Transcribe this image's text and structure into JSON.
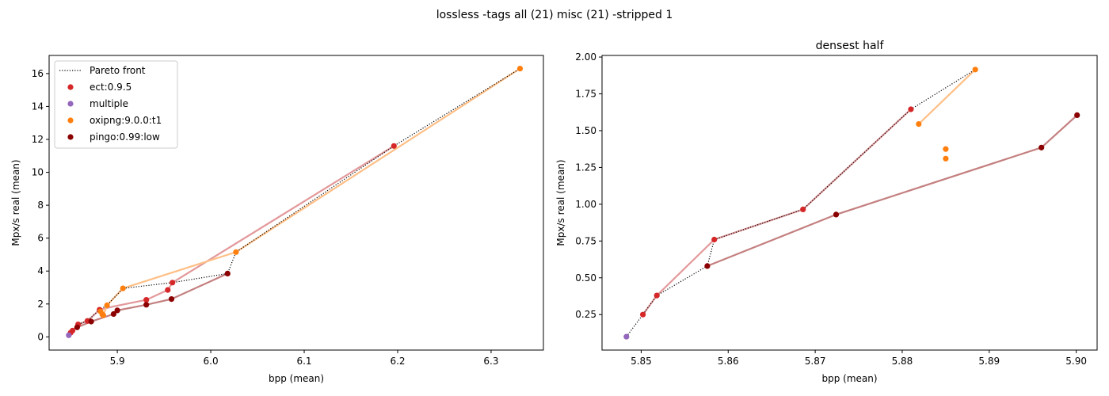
{
  "suptitle": "lossless -tags all (21) misc (21) -stripped 1",
  "colors": {
    "ect": "#d62728",
    "multiple": "#9467bd",
    "oxipng": "#ff7f0e",
    "pingo": "#8b0000",
    "ect_line": "#e3989a",
    "oxipng_line": "#ffbf86",
    "pingo_line": "#c47f7f",
    "pareto": "#000000"
  },
  "chart_data": [
    {
      "type": "scatter",
      "title": "",
      "xlabel": "bpp (mean)",
      "ylabel": "Mpx/s real (mean)",
      "xlim": [
        5.827,
        6.356
      ],
      "ylim": [
        -0.8,
        17.1
      ],
      "xticks": [
        5.9,
        6.0,
        6.1,
        6.2,
        6.3
      ],
      "xtick_labels": [
        "5.9",
        "6.0",
        "6.1",
        "6.2",
        "6.3"
      ],
      "yticks": [
        0,
        2,
        4,
        6,
        8,
        10,
        12,
        14,
        16
      ],
      "ytick_labels": [
        "0",
        "2",
        "4",
        "6",
        "8",
        "10",
        "12",
        "14",
        "16"
      ],
      "legend": {
        "placement": "upper-left",
        "entries": [
          {
            "label": "Pareto front",
            "kind": "line",
            "color_key": "pareto"
          },
          {
            "label": "ect:0.9.5",
            "kind": "point",
            "color_key": "ect"
          },
          {
            "label": "multiple",
            "kind": "point",
            "color_key": "multiple"
          },
          {
            "label": "oxipng:9.0.0:t1",
            "kind": "point",
            "color_key": "oxipng"
          },
          {
            "label": "pingo:0.99:low",
            "kind": "point",
            "color_key": "pingo"
          }
        ]
      },
      "series": [
        {
          "id": "ect-line",
          "kind": "line",
          "color_key": "ect_line",
          "x": [
            5.848,
            5.85,
            5.852,
            5.858,
            5.868,
            5.881,
            5.896,
            5.931,
            5.954,
            5.959,
            6.196
          ],
          "y": [
            0.1,
            0.25,
            0.38,
            0.76,
            0.97,
            1.65,
            1.85,
            2.25,
            2.85,
            3.3,
            11.6
          ]
        },
        {
          "id": "oxipng-line",
          "kind": "line",
          "color_key": "oxipng_line",
          "x": [
            5.882,
            5.884,
            5.885,
            5.889,
            5.906,
            6.027,
            6.331
          ],
          "y": [
            1.55,
            1.37,
            1.31,
            1.92,
            2.95,
            5.15,
            16.3
          ]
        },
        {
          "id": "pingo-line",
          "kind": "line",
          "color_key": "pingo_line",
          "x": [
            5.857,
            5.872,
            5.896,
            5.9,
            5.931,
            5.958,
            6.018
          ],
          "y": [
            0.58,
            0.93,
            1.39,
            1.61,
            1.95,
            2.3,
            3.85
          ]
        },
        {
          "id": "pareto-line",
          "kind": "dotted",
          "color_key": "pareto",
          "x": [
            5.848,
            5.85,
            5.852,
            5.857,
            5.858,
            5.868,
            5.881,
            5.889,
            5.906,
            5.959,
            6.018,
            6.027,
            6.196,
            6.331
          ],
          "y": [
            0.1,
            0.25,
            0.38,
            0.58,
            0.76,
            0.97,
            1.65,
            1.92,
            2.95,
            3.3,
            3.85,
            5.15,
            11.6,
            16.3
          ]
        },
        {
          "id": "ect-points",
          "kind": "points",
          "color_key": "ect",
          "x": [
            5.85,
            5.852,
            5.858,
            5.868,
            5.881,
            5.931,
            5.954,
            5.959,
            6.196
          ],
          "y": [
            0.25,
            0.38,
            0.76,
            0.97,
            1.65,
            2.25,
            2.85,
            3.3,
            11.6
          ]
        },
        {
          "id": "multiple-points",
          "kind": "points",
          "color_key": "multiple",
          "x": [
            5.848
          ],
          "y": [
            0.1
          ]
        },
        {
          "id": "oxipng-points",
          "kind": "points",
          "color_key": "oxipng",
          "x": [
            5.882,
            5.884,
            5.885,
            5.889,
            5.906,
            6.027,
            6.331
          ],
          "y": [
            1.55,
            1.37,
            1.31,
            1.92,
            2.95,
            5.15,
            16.3
          ]
        },
        {
          "id": "pingo-points",
          "kind": "points",
          "color_key": "pingo",
          "x": [
            5.857,
            5.872,
            5.896,
            5.9,
            5.931,
            5.958,
            6.018
          ],
          "y": [
            0.58,
            0.93,
            1.39,
            1.61,
            1.95,
            2.3,
            3.85
          ]
        }
      ]
    },
    {
      "type": "scatter",
      "title": "densest half",
      "xlabel": "bpp (mean)",
      "ylabel": "Mpx/s real (mean)",
      "xlim": [
        5.8455,
        5.9024
      ],
      "ylim": [
        0.009,
        2.011
      ],
      "xticks": [
        5.85,
        5.86,
        5.87,
        5.88,
        5.89,
        5.9
      ],
      "xtick_labels": [
        "5.85",
        "5.86",
        "5.87",
        "5.88",
        "5.89",
        "5.90"
      ],
      "yticks": [
        0.25,
        0.5,
        0.75,
        1.0,
        1.25,
        1.5,
        1.75,
        2.0
      ],
      "ytick_labels": [
        "0.25",
        "0.50",
        "0.75",
        "1.00",
        "1.25",
        "1.50",
        "1.75",
        "2.00"
      ],
      "series": [
        {
          "id": "ect-line",
          "kind": "line",
          "color_key": "ect_line",
          "x": [
            5.8502,
            5.8518,
            5.8584,
            5.8686,
            5.881
          ],
          "y": [
            0.25,
            0.38,
            0.76,
            0.965,
            1.645
          ]
        },
        {
          "id": "oxipng-line",
          "kind": "line",
          "color_key": "oxipng_line",
          "x": [
            5.8819,
            5.8884
          ],
          "y": [
            1.545,
            1.915
          ]
        },
        {
          "id": "pingo-line",
          "kind": "line",
          "color_key": "pingo_line",
          "x": [
            5.8576,
            5.8724,
            5.896,
            5.9001
          ],
          "y": [
            0.58,
            0.93,
            1.385,
            1.605
          ]
        },
        {
          "id": "pareto-line",
          "kind": "dotted",
          "color_key": "pareto",
          "x": [
            5.8483,
            5.8502,
            5.8518,
            5.8576,
            5.8584,
            5.8686,
            5.881,
            5.8884
          ],
          "y": [
            0.1,
            0.25,
            0.38,
            0.58,
            0.76,
            0.965,
            1.645,
            1.915
          ]
        },
        {
          "id": "ect-points",
          "kind": "points",
          "color_key": "ect",
          "x": [
            5.8502,
            5.8518,
            5.8584,
            5.8686,
            5.881
          ],
          "y": [
            0.25,
            0.38,
            0.76,
            0.965,
            1.645
          ]
        },
        {
          "id": "multiple-points",
          "kind": "points",
          "color_key": "multiple",
          "x": [
            5.8483
          ],
          "y": [
            0.1
          ]
        },
        {
          "id": "oxipng-points",
          "kind": "points",
          "color_key": "oxipng",
          "x": [
            5.8819,
            5.885,
            5.885,
            5.8884
          ],
          "y": [
            1.545,
            1.375,
            1.31,
            1.915
          ]
        },
        {
          "id": "pingo-points",
          "kind": "points",
          "color_key": "pingo",
          "x": [
            5.8576,
            5.8724,
            5.896,
            5.9001
          ],
          "y": [
            0.58,
            0.93,
            1.385,
            1.605
          ]
        }
      ]
    }
  ]
}
